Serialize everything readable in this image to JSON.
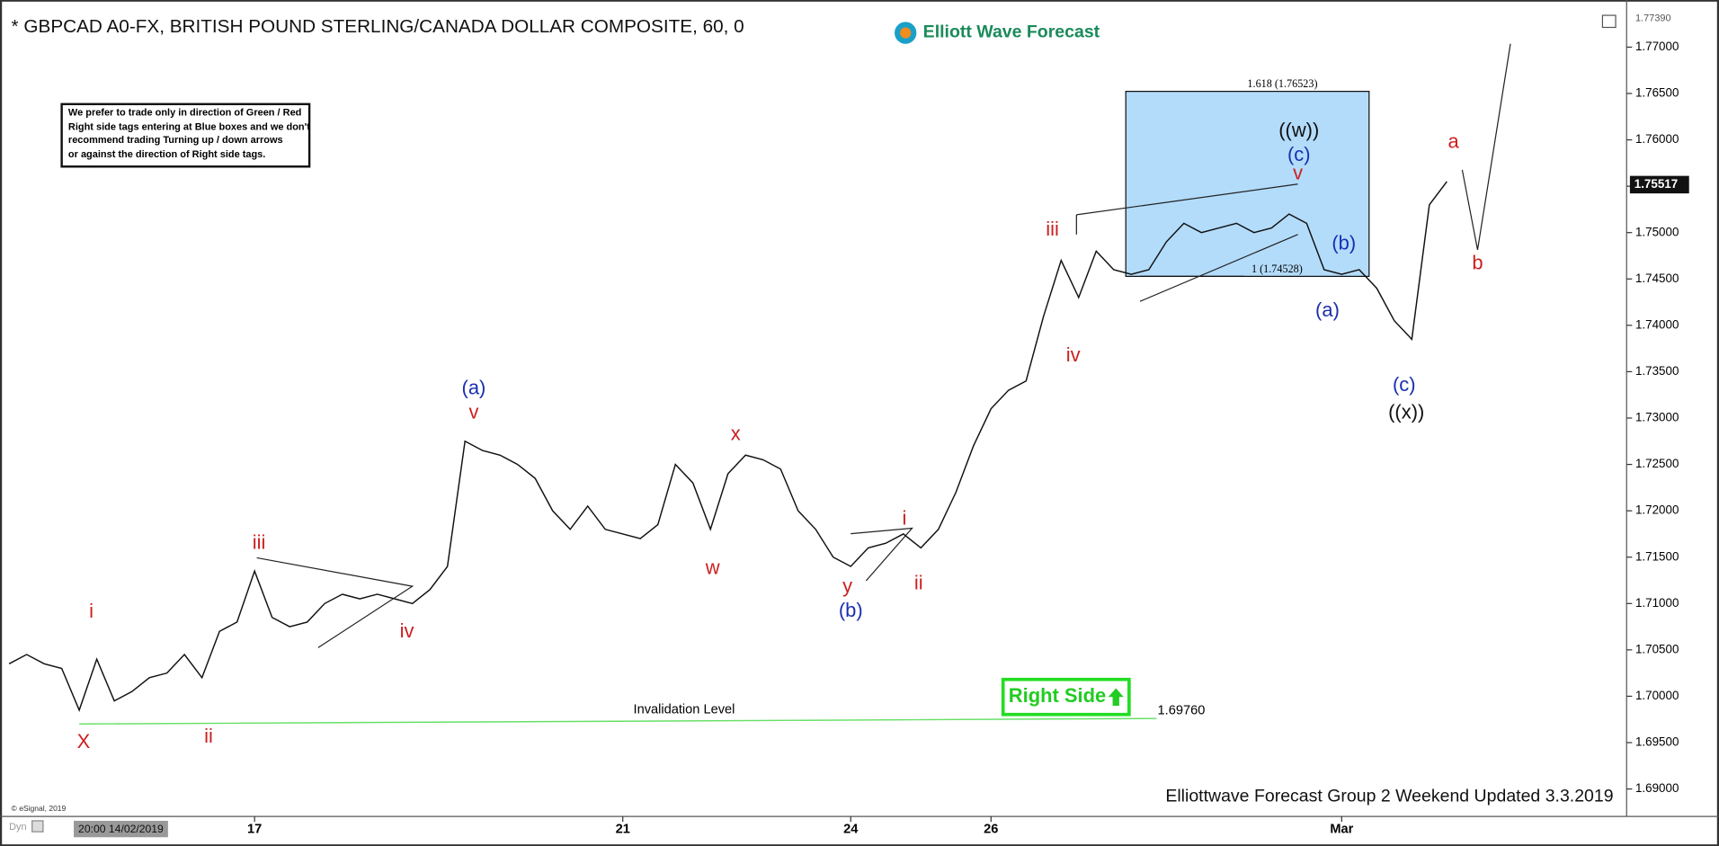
{
  "chart_data": {
    "type": "line",
    "title": "* GBPCAD A0-FX, BRITISH POUND STERLING/CANADA DOLLAR COMPOSITE, 60, 0",
    "logo": "Elliott Wave Forecast",
    "color": "#111111",
    "categories": [
      null,
      null,
      null,
      null,
      null,
      null,
      "20:00 14/02/2019",
      null,
      null,
      null,
      null,
      null,
      null,
      null,
      "17",
      null,
      null,
      null,
      null,
      null,
      null,
      null,
      null,
      null,
      null,
      null,
      null,
      null,
      null,
      null,
      null,
      null,
      null,
      null,
      null,
      "21",
      null,
      null,
      null,
      null,
      null,
      null,
      null,
      null,
      null,
      null,
      null,
      null,
      "24",
      null,
      null,
      null,
      null,
      null,
      null,
      null,
      "26",
      null,
      null,
      null,
      null,
      null,
      null,
      null,
      null,
      null,
      null,
      null,
      null,
      null,
      null,
      null,
      null,
      null,
      null,
      null,
      "Mar",
      null,
      null,
      null,
      null,
      null,
      null
    ],
    "values": [
      1.7035,
      1.7045,
      1.7035,
      1.703,
      1.6985,
      1.704,
      1.6995,
      1.7005,
      1.702,
      1.7025,
      1.7045,
      1.702,
      1.707,
      1.708,
      1.7135,
      1.7085,
      1.7075,
      1.708,
      1.71,
      1.711,
      1.7105,
      1.711,
      1.7105,
      1.71,
      1.7115,
      1.714,
      1.7275,
      1.7265,
      1.726,
      1.725,
      1.7235,
      1.72,
      1.718,
      1.7205,
      1.718,
      1.7175,
      1.717,
      1.7185,
      1.725,
      1.723,
      1.718,
      1.724,
      1.726,
      1.7255,
      1.7245,
      1.72,
      1.718,
      1.715,
      1.714,
      1.716,
      1.7165,
      1.7175,
      1.716,
      1.718,
      1.722,
      1.727,
      1.731,
      1.733,
      1.734,
      1.741,
      1.747,
      1.743,
      1.748,
      1.746,
      1.7455,
      1.746,
      1.749,
      1.751,
      1.75,
      1.7505,
      1.751,
      1.75,
      1.7505,
      1.752,
      1.751,
      1.746,
      1.7455,
      1.746,
      1.744,
      1.7405,
      1.7385,
      1.753,
      1.7555
    ],
    "ylim": [
      1.68716,
      1.7739
    ],
    "yticks": [
      {
        "value": 1.69,
        "label": "1.69000"
      },
      {
        "value": 1.695,
        "label": "1.69500"
      },
      {
        "value": 1.7,
        "label": "1.70000"
      },
      {
        "value": 1.705,
        "label": "1.70500"
      },
      {
        "value": 1.71,
        "label": "1.71000"
      },
      {
        "value": 1.715,
        "label": "1.71500"
      },
      {
        "value": 1.72,
        "label": "1.72000"
      },
      {
        "value": 1.725,
        "label": "1.72500"
      },
      {
        "value": 1.73,
        "label": "1.73000"
      },
      {
        "value": 1.735,
        "label": "1.73500"
      },
      {
        "value": 1.74,
        "label": "1.74000"
      },
      {
        "value": 1.745,
        "label": "1.74500"
      },
      {
        "value": 1.75,
        "label": "1.75000"
      },
      {
        "value": 1.755,
        "label": "1.75500"
      },
      {
        "value": 1.76,
        "label": "1.76000"
      },
      {
        "value": 1.765,
        "label": "1.76500"
      },
      {
        "value": 1.77,
        "label": "1.77000"
      }
    ],
    "axis_top": {
      "value": 1.7739,
      "label": "1.77390"
    },
    "last_price": {
      "value": 1.75517,
      "label": "1.75517"
    },
    "fib_box": {
      "top": 1.76523,
      "bottom": 1.74528,
      "top_label": "1.618 (1.76523)",
      "bottom_label": "1 (1.74528)",
      "color": "#b3dcfb"
    },
    "invalidation": {
      "value": 1.6976,
      "label": "1.69760",
      "text": "Invalidation Level",
      "color": "#66e066"
    },
    "annotations": [
      {
        "text": "i",
        "color": "#cc1f1f"
      },
      {
        "text": "X",
        "color": "#cc1f1f"
      },
      {
        "text": "ii",
        "color": "#cc1f1f"
      },
      {
        "text": "iii",
        "color": "#cc1f1f"
      },
      {
        "text": "iv",
        "color": "#cc1f1f"
      },
      {
        "text": "(a)",
        "color": "#1a2fb0"
      },
      {
        "text": "v",
        "color": "#cc1f1f"
      },
      {
        "text": "x",
        "color": "#cc1f1f"
      },
      {
        "text": "w",
        "color": "#cc1f1f"
      },
      {
        "text": "y",
        "color": "#cc1f1f"
      },
      {
        "text": "(b)",
        "color": "#1a2fb0"
      },
      {
        "text": "i",
        "color": "#cc1f1f"
      },
      {
        "text": "ii",
        "color": "#cc1f1f"
      },
      {
        "text": "iii",
        "color": "#cc1f1f"
      },
      {
        "text": "iv",
        "color": "#cc1f1f"
      },
      {
        "text": "((w))",
        "color": "#111111"
      },
      {
        "text": "(c)",
        "color": "#1a2fb0"
      },
      {
        "text": "v",
        "color": "#cc1f1f"
      },
      {
        "text": "(b)",
        "color": "#1a2fb0"
      },
      {
        "text": "(a)",
        "color": "#1a2fb0"
      },
      {
        "text": "(c)",
        "color": "#1a2fb0"
      },
      {
        "text": "((x))",
        "color": "#111111"
      },
      {
        "text": "a",
        "color": "#cc1f1f"
      },
      {
        "text": "b",
        "color": "#cc1f1f"
      }
    ],
    "note": [
      "We prefer to trade only in direction of Green / Red",
      "Right side tags entering at Blue boxes and we don't",
      "recommend trading Turning up / down arrows",
      "or against the direction of Right side tags."
    ],
    "right_side": "Right Side",
    "footer": "Elliottwave Forecast Group 2 Weekend Updated 3.3.2019",
    "copyright": "© eSignal, 2019",
    "corner": "Dyn"
  }
}
